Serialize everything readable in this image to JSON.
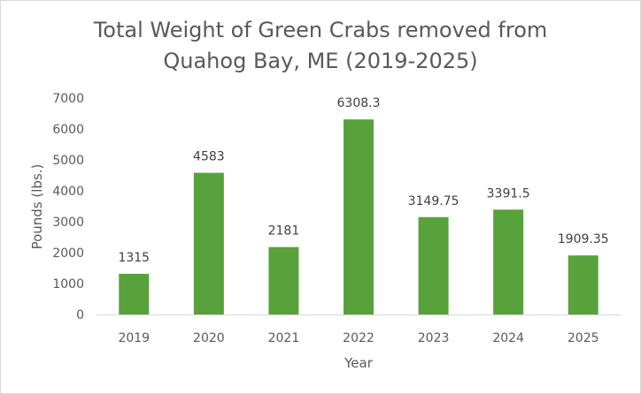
{
  "chart_data": {
    "type": "bar",
    "title_line1": "Total Weight of Green Crabs removed from",
    "title_line2": "Quahog Bay, ME (2019-2025)",
    "xlabel": "Year",
    "ylabel": "Pounds (lbs.)",
    "categories": [
      "2019",
      "2020",
      "2021",
      "2022",
      "2023",
      "2024",
      "2025"
    ],
    "values": [
      1315,
      4583,
      2181,
      6308.3,
      3149.75,
      3391.5,
      1909.35
    ],
    "data_labels": [
      "1315",
      "4583",
      "2181",
      "6308.3",
      "3149.75",
      "3391.5",
      "1909.35"
    ],
    "ylim": [
      0,
      7000
    ],
    "yticks": [
      0,
      1000,
      2000,
      3000,
      4000,
      5000,
      6000,
      7000
    ],
    "grid": false,
    "bar_color": "#58a23c",
    "axis_color": "#d9d9d9"
  }
}
